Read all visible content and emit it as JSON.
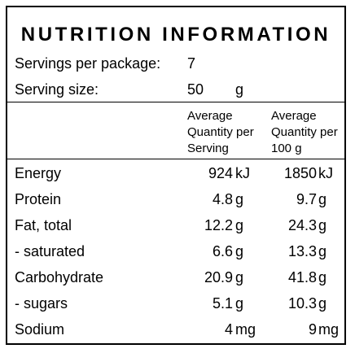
{
  "title": "NUTRITION INFORMATION",
  "servings": {
    "label": "Servings per package:",
    "value": "7"
  },
  "serving_size": {
    "label": "Serving size:",
    "value": "50",
    "unit": "g"
  },
  "columns": [
    {
      "lines": [
        "Average",
        "Quantity per",
        "Serving"
      ]
    },
    {
      "lines": [
        "Average",
        "Quantity per",
        "100 g"
      ]
    }
  ],
  "rows": [
    {
      "name": "Energy",
      "serving": "924",
      "serving_unit": "kJ",
      "per100": "1850",
      "per100_unit": "kJ"
    },
    {
      "name": "Protein",
      "serving": "4.8",
      "serving_unit": "g",
      "per100": "9.7",
      "per100_unit": "g"
    },
    {
      "name": "Fat, total",
      "serving": "12.2",
      "serving_unit": "g",
      "per100": "24.3",
      "per100_unit": "g"
    },
    {
      "name": "- saturated",
      "serving": "6.6",
      "serving_unit": "g",
      "per100": "13.3",
      "per100_unit": "g"
    },
    {
      "name": "Carbohydrate",
      "serving": "20.9",
      "serving_unit": "g",
      "per100": "41.8",
      "per100_unit": "g"
    },
    {
      "name": "- sugars",
      "serving": "5.1",
      "serving_unit": "g",
      "per100": "10.3",
      "per100_unit": "g"
    },
    {
      "name": "Sodium",
      "serving": "4",
      "serving_unit": "mg",
      "per100": "9",
      "per100_unit": "mg"
    }
  ]
}
